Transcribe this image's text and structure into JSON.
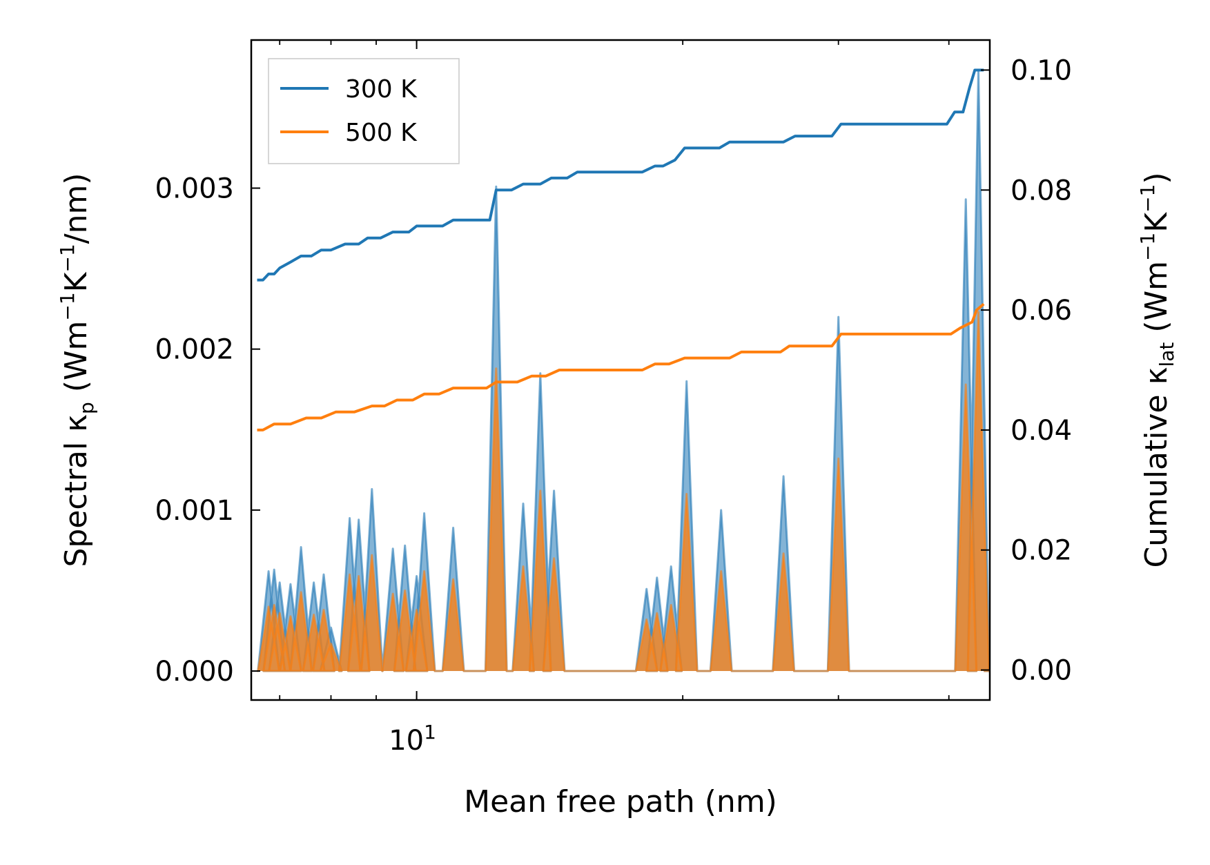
{
  "chart_data": {
    "type": "line",
    "x_scale": "log",
    "xlim": [
      6.5,
      44.5
    ],
    "xlabel": "Mean free path (nm)",
    "x_tick_labels": [
      {
        "value": 10,
        "base": "10",
        "exponent": "1"
      }
    ],
    "ylabel_left": {
      "text": "Spectral κ",
      "sub": "p",
      "units_open": " (Wm",
      "sup1": "−1",
      "mid": "K",
      "sup2": "−1",
      "units_close": "/nm)"
    },
    "ylabel_right": {
      "text": "Cumulative κ",
      "sub": "lat",
      "units_open": " (Wm",
      "sup1": "−1",
      "mid": "K",
      "sup2": "−1",
      "units_close": ")"
    },
    "ylim_left": [
      -0.00018,
      0.00392
    ],
    "ylim_right": [
      -0.005,
      0.105
    ],
    "left_ticks": [
      {
        "value": 0.0,
        "label": "0.000"
      },
      {
        "value": 0.001,
        "label": "0.001"
      },
      {
        "value": 0.002,
        "label": "0.002"
      },
      {
        "value": 0.003,
        "label": "0.003"
      }
    ],
    "right_ticks": [
      {
        "value": 0.0,
        "label": "0.00"
      },
      {
        "value": 0.02,
        "label": "0.02"
      },
      {
        "value": 0.04,
        "label": "0.04"
      },
      {
        "value": 0.06,
        "label": "0.06"
      },
      {
        "value": 0.08,
        "label": "0.08"
      },
      {
        "value": 0.1,
        "label": "0.10"
      }
    ],
    "legend": {
      "position": "top-left",
      "entries": [
        {
          "name": "300 K",
          "color": "#1f77b4"
        },
        {
          "name": "500 K",
          "color": "#ff7f0e"
        }
      ]
    },
    "cumulative_series": [
      {
        "name": "300 K",
        "color": "#1f77b4",
        "axis": "right",
        "points": [
          [
            6.6,
            0.065
          ],
          [
            6.7,
            0.065
          ],
          [
            6.8,
            0.066
          ],
          [
            6.9,
            0.066
          ],
          [
            7.0,
            0.067
          ],
          [
            7.2,
            0.068
          ],
          [
            7.4,
            0.069
          ],
          [
            7.6,
            0.069
          ],
          [
            7.8,
            0.07
          ],
          [
            8.0,
            0.07
          ],
          [
            8.3,
            0.071
          ],
          [
            8.6,
            0.071
          ],
          [
            8.8,
            0.072
          ],
          [
            9.1,
            0.072
          ],
          [
            9.4,
            0.073
          ],
          [
            9.8,
            0.073
          ],
          [
            10.0,
            0.074
          ],
          [
            10.7,
            0.074
          ],
          [
            11.0,
            0.075
          ],
          [
            12.1,
            0.075
          ],
          [
            12.3,
            0.08
          ],
          [
            12.8,
            0.08
          ],
          [
            13.2,
            0.081
          ],
          [
            13.8,
            0.081
          ],
          [
            14.2,
            0.082
          ],
          [
            14.8,
            0.082
          ],
          [
            15.2,
            0.083
          ],
          [
            16.0,
            0.083
          ],
          [
            18.0,
            0.083
          ],
          [
            18.6,
            0.084
          ],
          [
            19.0,
            0.084
          ],
          [
            19.6,
            0.085
          ],
          [
            20.1,
            0.087
          ],
          [
            22.0,
            0.087
          ],
          [
            22.6,
            0.088
          ],
          [
            26.0,
            0.088
          ],
          [
            26.8,
            0.089
          ],
          [
            29.5,
            0.089
          ],
          [
            30.2,
            0.091
          ],
          [
            39.8,
            0.091
          ],
          [
            40.6,
            0.093
          ],
          [
            41.5,
            0.093
          ],
          [
            42.2,
            0.097
          ],
          [
            42.8,
            0.1
          ],
          [
            43.8,
            0.1
          ]
        ]
      },
      {
        "name": "500 K",
        "color": "#ff7f0e",
        "axis": "right",
        "points": [
          [
            6.6,
            0.04
          ],
          [
            6.7,
            0.04
          ],
          [
            6.9,
            0.041
          ],
          [
            7.2,
            0.041
          ],
          [
            7.5,
            0.042
          ],
          [
            7.8,
            0.042
          ],
          [
            8.1,
            0.043
          ],
          [
            8.5,
            0.043
          ],
          [
            8.9,
            0.044
          ],
          [
            9.2,
            0.044
          ],
          [
            9.5,
            0.045
          ],
          [
            9.9,
            0.045
          ],
          [
            10.2,
            0.046
          ],
          [
            10.6,
            0.046
          ],
          [
            11.0,
            0.047
          ],
          [
            12.0,
            0.047
          ],
          [
            12.3,
            0.048
          ],
          [
            13.0,
            0.048
          ],
          [
            13.5,
            0.049
          ],
          [
            14.0,
            0.049
          ],
          [
            14.5,
            0.05
          ],
          [
            15.3,
            0.05
          ],
          [
            16.2,
            0.05
          ],
          [
            18.0,
            0.05
          ],
          [
            18.6,
            0.051
          ],
          [
            19.3,
            0.051
          ],
          [
            20.1,
            0.052
          ],
          [
            22.6,
            0.052
          ],
          [
            23.3,
            0.053
          ],
          [
            25.8,
            0.053
          ],
          [
            26.4,
            0.054
          ],
          [
            29.5,
            0.054
          ],
          [
            30.2,
            0.056
          ],
          [
            40.2,
            0.056
          ],
          [
            41.2,
            0.057
          ],
          [
            42.5,
            0.058
          ],
          [
            43.0,
            0.06
          ],
          [
            43.8,
            0.061
          ]
        ]
      }
    ],
    "spectral_series": [
      {
        "name": "300 K",
        "color": "#1f77b4",
        "axis": "left",
        "peaks": [
          [
            6.8,
            0.00062
          ],
          [
            6.9,
            0.00063
          ],
          [
            7.0,
            0.00055
          ],
          [
            7.2,
            0.00054
          ],
          [
            7.4,
            0.00077
          ],
          [
            7.65,
            0.00055
          ],
          [
            7.85,
            0.0006
          ],
          [
            8.0,
            0.00027
          ],
          [
            8.4,
            0.00095
          ],
          [
            8.6,
            0.00094
          ],
          [
            8.9,
            0.00113
          ],
          [
            9.4,
            0.00076
          ],
          [
            9.7,
            0.00078
          ],
          [
            10.0,
            0.00059
          ],
          [
            10.2,
            0.00098
          ],
          [
            11.0,
            0.00089
          ],
          [
            12.3,
            0.00301
          ],
          [
            13.2,
            0.00104
          ],
          [
            13.8,
            0.00185
          ],
          [
            14.3,
            0.00112
          ],
          [
            18.2,
            0.00051
          ],
          [
            18.7,
            0.00058
          ],
          [
            19.4,
            0.00065
          ],
          [
            20.2,
            0.0018
          ],
          [
            22.1,
            0.001
          ],
          [
            26.0,
            0.00121
          ],
          [
            30.0,
            0.0022
          ],
          [
            41.8,
            0.00293
          ],
          [
            43.2,
            0.00373
          ]
        ]
      },
      {
        "name": "500 K",
        "color": "#ff7f0e",
        "axis": "left",
        "peaks": [
          [
            6.8,
            0.0004
          ],
          [
            6.9,
            0.00041
          ],
          [
            7.0,
            0.00036
          ],
          [
            7.2,
            0.00034
          ],
          [
            7.4,
            0.00049
          ],
          [
            7.65,
            0.00035
          ],
          [
            7.85,
            0.00038
          ],
          [
            8.0,
            0.00017
          ],
          [
            8.4,
            0.0006
          ],
          [
            8.6,
            0.00059
          ],
          [
            8.9,
            0.00072
          ],
          [
            9.4,
            0.00048
          ],
          [
            9.7,
            0.0005
          ],
          [
            10.0,
            0.00038
          ],
          [
            10.2,
            0.00062
          ],
          [
            11.0,
            0.00057
          ],
          [
            12.3,
            0.00188
          ],
          [
            13.2,
            0.00065
          ],
          [
            13.8,
            0.00112
          ],
          [
            14.3,
            0.0007
          ],
          [
            18.2,
            0.00032
          ],
          [
            18.7,
            0.00036
          ],
          [
            19.4,
            0.00041
          ],
          [
            20.2,
            0.0011
          ],
          [
            22.1,
            0.00062
          ],
          [
            26.0,
            0.00073
          ],
          [
            30.0,
            0.00132
          ],
          [
            41.8,
            0.00178
          ],
          [
            43.2,
            0.00223
          ]
        ]
      }
    ]
  }
}
